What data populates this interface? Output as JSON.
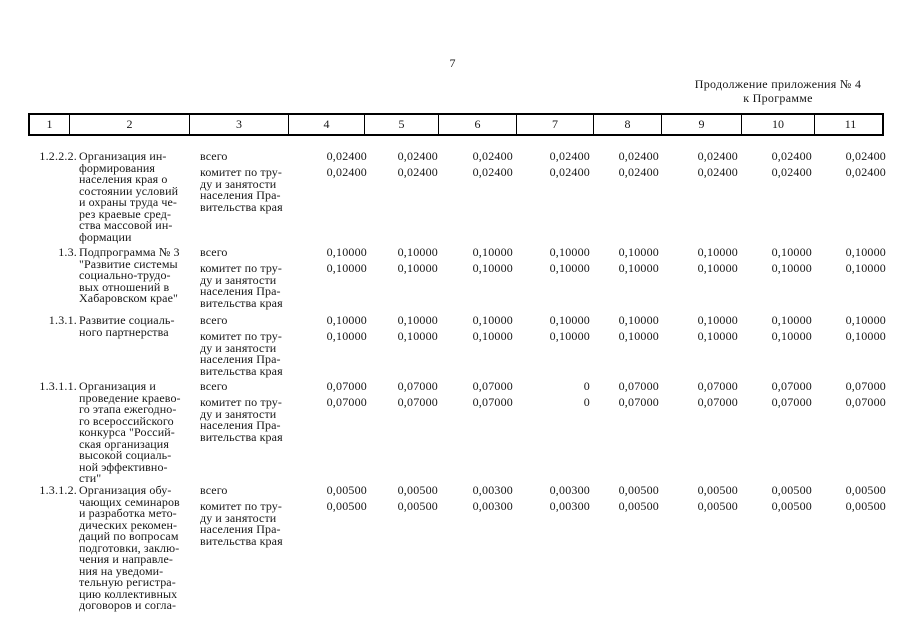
{
  "page": {
    "number": "7",
    "appendix_note_line1": "Продолжение приложения № 4",
    "appendix_note_line2": "к Программе"
  },
  "table": {
    "column_numbers": [
      "1",
      "2",
      "3",
      "4",
      "5",
      "6",
      "7",
      "8",
      "9",
      "10",
      "11"
    ],
    "rows": [
      {
        "num": "1.2.2.2.",
        "description_lines": [
          "Организация ин-",
          "формирования",
          "населения края о",
          "состоянии условий",
          "и охраны труда че-",
          "рез краевые сред-",
          "ства массовой ин-",
          "формации"
        ],
        "entries": [
          {
            "executor_lines": [
              "всего"
            ],
            "values": [
              "0,02400",
              "0,02400",
              "0,02400",
              "0,02400",
              "0,02400",
              "0,02400",
              "0,02400",
              "0,02400"
            ]
          },
          {
            "executor_lines": [
              "комитет по тру-",
              "ду и занятости",
              "населения Пра-",
              "вительства края"
            ],
            "values": [
              "0,02400",
              "0,02400",
              "0,02400",
              "0,02400",
              "0,02400",
              "0,02400",
              "0,02400",
              "0,02400"
            ]
          }
        ]
      },
      {
        "num": "1.3.",
        "description_lines": [
          "Подпрограмма № 3",
          "\"Развитие системы",
          "социально-трудо-",
          "вых отношений в",
          "Хабаровском крае\""
        ],
        "entries": [
          {
            "executor_lines": [
              "всего"
            ],
            "values": [
              "0,10000",
              "0,10000",
              "0,10000",
              "0,10000",
              "0,10000",
              "0,10000",
              "0,10000",
              "0,10000"
            ]
          },
          {
            "executor_lines": [
              "комитет по тру-",
              "ду и занятости",
              "населения Пра-",
              "вительства края"
            ],
            "values": [
              "0,10000",
              "0,10000",
              "0,10000",
              "0,10000",
              "0,10000",
              "0,10000",
              "0,10000",
              "0,10000"
            ]
          }
        ]
      },
      {
        "num": "1.3.1.",
        "description_lines": [
          "Развитие социаль-",
          "ного партнерства"
        ],
        "entries": [
          {
            "executor_lines": [
              "всего"
            ],
            "values": [
              "0,10000",
              "0,10000",
              "0,10000",
              "0,10000",
              "0,10000",
              "0,10000",
              "0,10000",
              "0,10000"
            ]
          },
          {
            "executor_lines": [
              "комитет по тру-",
              "ду и занятости",
              "населения Пра-",
              "вительства края"
            ],
            "values": [
              "0,10000",
              "0,10000",
              "0,10000",
              "0,10000",
              "0,10000",
              "0,10000",
              "0,10000",
              "0,10000"
            ]
          }
        ]
      },
      {
        "num": "1.3.1.1.",
        "description_lines": [
          "Организация и",
          "проведение краево-",
          "го этапа ежегодно-",
          "го всероссийского",
          "конкурса \"Россий-",
          "ская организация",
          "высокой социаль-",
          "ной эффективно-",
          "сти\""
        ],
        "entries": [
          {
            "executor_lines": [
              "всего"
            ],
            "values": [
              "0,07000",
              "0,07000",
              "0,07000",
              "0",
              "0,07000",
              "0,07000",
              "0,07000",
              "0,07000"
            ]
          },
          {
            "executor_lines": [
              "комитет по тру-",
              "ду и занятости",
              "населения Пра-",
              "вительства края"
            ],
            "values": [
              "0,07000",
              "0,07000",
              "0,07000",
              "0",
              "0,07000",
              "0,07000",
              "0,07000",
              "0,07000"
            ]
          }
        ]
      },
      {
        "num": "1.3.1.2.",
        "description_lines": [
          "Организация обу-",
          "чающих семинаров",
          "и разработка мето-",
          "дических рекомен-",
          "даций по вопросам",
          "подготовки, заклю-",
          "чения и направле-",
          "ния на уведоми-",
          "тельную регистра-",
          "цию коллективных",
          "договоров и согла-"
        ],
        "entries": [
          {
            "executor_lines": [
              "всего"
            ],
            "values": [
              "0,00500",
              "0,00500",
              "0,00300",
              "0,00300",
              "0,00500",
              "0,00500",
              "0,00500",
              "0,00500"
            ]
          },
          {
            "executor_lines": [
              "комитет по тру-",
              "ду и занятости",
              "населения Пра-",
              "вительства края"
            ],
            "values": [
              "0,00500",
              "0,00500",
              "0,00300",
              "0,00300",
              "0,00500",
              "0,00500",
              "0,00500",
              "0,00500"
            ]
          }
        ]
      }
    ]
  }
}
